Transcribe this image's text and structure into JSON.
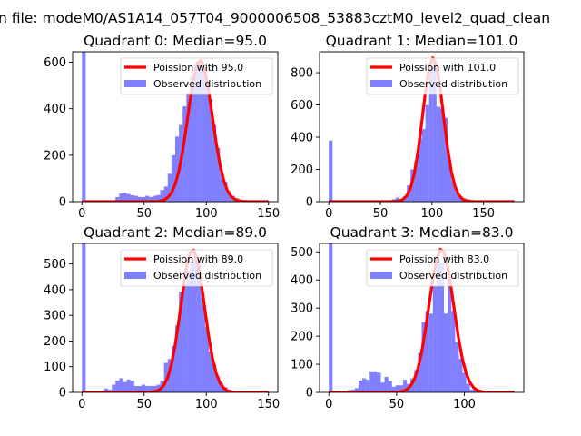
{
  "chart_data": {
    "type": "bar",
    "suptitle": "n file: modeM0/AS1A14_057T04_9000006508_53883cztM0_level2_quad_clean",
    "colors": {
      "hist": "#0000ff",
      "poisson": "#ff0000"
    },
    "subplots": [
      {
        "title": "Quadrant 0: Median=95.0",
        "median": 95.0,
        "legend": {
          "line_label": "Poission with 95.0",
          "hist_label": "Observed distribution",
          "placement": "upper right"
        },
        "xlim": [
          -7.5,
          157.5
        ],
        "ylim": [
          0,
          645
        ],
        "xticks": [
          "0",
          "50",
          "100",
          "150"
        ],
        "xtick_values": [
          0,
          50,
          100,
          150
        ],
        "yticks": [
          "0",
          "200",
          "400",
          "600"
        ],
        "ytick_values": [
          0,
          200,
          400,
          600
        ],
        "bin_start": 0,
        "bin_width": 3,
        "curve_max_x": 150,
        "poisson_peak": 611,
        "hist_values": [
          1200,
          0,
          0,
          0,
          0,
          0,
          5,
          5,
          5,
          20,
          35,
          38,
          33,
          28,
          25,
          20,
          20,
          25,
          20,
          25,
          28,
          50,
          65,
          120,
          200,
          280,
          330,
          410,
          470,
          540,
          590,
          600,
          590,
          520,
          440,
          330,
          232,
          124,
          85,
          45,
          25,
          15,
          5,
          0,
          0,
          0,
          0,
          0,
          0,
          0
        ]
      },
      {
        "title": "Quadrant 1: Median=101.0",
        "median": 101.0,
        "legend": {
          "line_label": "Poission with 101.0",
          "hist_label": "Observed distribution",
          "placement": "upper right"
        },
        "xlim": [
          -9,
          189
        ],
        "ylim": [
          0,
          930
        ],
        "xticks": [
          "0",
          "50",
          "100",
          "150"
        ],
        "xtick_values": [
          0,
          50,
          100,
          150
        ],
        "yticks": [
          "0",
          "200",
          "400",
          "600",
          "800"
        ],
        "ytick_values": [
          0,
          200,
          400,
          600,
          800
        ],
        "bin_start": 0,
        "bin_width": 3.6,
        "curve_max_x": 180,
        "poisson_peak": 893,
        "hist_values": [
          380,
          0,
          0,
          0,
          0,
          0,
          0,
          0,
          5,
          5,
          5,
          5,
          5,
          5,
          5,
          5,
          5,
          15,
          25,
          15,
          35,
          100,
          200,
          250,
          390,
          450,
          600,
          830,
          880,
          590,
          580,
          520,
          262,
          133,
          60,
          35,
          20,
          15,
          10,
          5,
          0,
          0,
          0,
          0,
          0,
          0,
          0,
          0,
          0,
          0
        ]
      },
      {
        "title": "Quadrant 2: Median=89.0",
        "median": 89.0,
        "legend": {
          "line_label": "Poission with 89.0",
          "hist_label": "Observed distribution",
          "placement": "upper right"
        },
        "xlim": [
          -7.5,
          157.5
        ],
        "ylim": [
          0,
          580
        ],
        "xticks": [
          "0",
          "50",
          "100",
          "150"
        ],
        "xtick_values": [
          0,
          50,
          100,
          150
        ],
        "yticks": [
          "0",
          "100",
          "200",
          "300",
          "400",
          "500"
        ],
        "ytick_values": [
          0,
          100,
          200,
          300,
          400,
          500
        ],
        "bin_start": 0,
        "bin_width": 3,
        "curve_max_x": 150,
        "poisson_peak": 557,
        "hist_values": [
          1200,
          0,
          0,
          0,
          0,
          0,
          15,
          10,
          30,
          46,
          55,
          40,
          50,
          45,
          25,
          25,
          30,
          25,
          25,
          25,
          30,
          45,
          115,
          130,
          180,
          260,
          392,
          420,
          470,
          510,
          540,
          510,
          340,
          254,
          160,
          110,
          60,
          35,
          20,
          10,
          5,
          0,
          0,
          0,
          0,
          0,
          0,
          0,
          0,
          0
        ]
      },
      {
        "title": "Quadrant 3: Median=83.0",
        "median": 83.0,
        "legend": {
          "line_label": "Poission with 83.0",
          "hist_label": "Observed distribution",
          "placement": "upper right"
        },
        "xlim": [
          -6.85,
          143.85
        ],
        "ylim": [
          0,
          530
        ],
        "xticks": [
          "0",
          "50",
          "100"
        ],
        "xtick_values": [
          0,
          50,
          100
        ],
        "yticks": [
          "0",
          "100",
          "200",
          "300",
          "400",
          "500"
        ],
        "ytick_values": [
          0,
          100,
          200,
          300,
          400,
          500
        ],
        "bin_start": 0,
        "bin_width": 2.74,
        "curve_max_x": 137,
        "poisson_peak": 511,
        "hist_values": [
          1200,
          0,
          0,
          0,
          5,
          8,
          10,
          15,
          42,
          50,
          45,
          75,
          75,
          70,
          35,
          55,
          40,
          20,
          25,
          25,
          45,
          30,
          50,
          80,
          140,
          250,
          290,
          280,
          380,
          460,
          460,
          280,
          400,
          290,
          180,
          120,
          70,
          30,
          10,
          10,
          0,
          0,
          0,
          0,
          0,
          0,
          0,
          0,
          0,
          0
        ]
      }
    ]
  }
}
